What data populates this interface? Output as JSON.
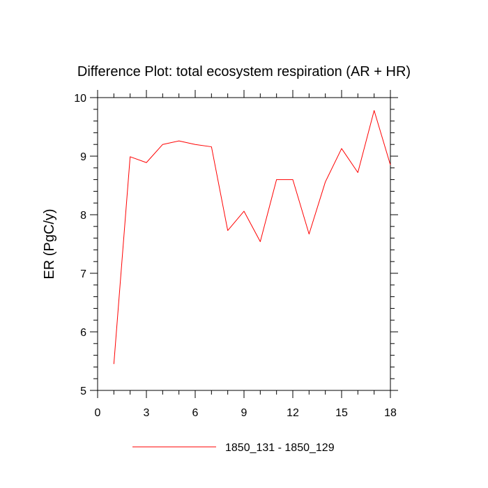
{
  "chart_data": {
    "type": "line",
    "title": "Difference Plot: total ecosystem respiration (AR + HR)",
    "xlabel": "",
    "ylabel": "ER  (PgC/y)",
    "xlim": [
      0,
      18
    ],
    "ylim": [
      5,
      10
    ],
    "x_ticks": [
      0,
      3,
      6,
      9,
      12,
      15,
      18
    ],
    "y_ticks": [
      5,
      6,
      7,
      8,
      9,
      10
    ],
    "x_tick_labels": [
      "0",
      "3",
      "6",
      "9",
      "12",
      "15",
      "18"
    ],
    "y_tick_labels": [
      "5",
      "6",
      "7",
      "8",
      "9",
      "10"
    ],
    "grid": false,
    "legend_position": "bottom-center",
    "series": [
      {
        "name": "1850_131 - 1850_129",
        "color": "#ff0000",
        "x": [
          1,
          2,
          3,
          4,
          5,
          6,
          7,
          8,
          9,
          10,
          11,
          12,
          13,
          14,
          15,
          16,
          17,
          18
        ],
        "values": [
          5.45,
          8.99,
          8.89,
          9.2,
          9.26,
          9.2,
          9.16,
          7.73,
          8.06,
          7.54,
          8.6,
          8.6,
          7.67,
          8.56,
          9.13,
          8.72,
          9.78,
          8.85
        ]
      }
    ]
  }
}
